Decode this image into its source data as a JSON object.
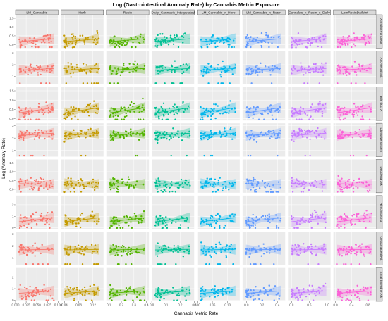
{
  "chart_data": {
    "type": "scatter",
    "title": "Log (Gastrointestinal Anomaly Rate) by Cannabis Metric Exposure",
    "xlabel": "Cannabis Metric Rate",
    "ylabel": "Log (Anomaly Rate)",
    "grid": true,
    "legend": "none",
    "columns": [
      {
        "name": "LM_Cannabis",
        "color": "#F8766D",
        "xlim": [
          0,
          0.1
        ],
        "ticks": [
          "0.000",
          "0.025",
          "0.050",
          "0.075",
          "0.100"
        ],
        "tickvals": [
          0,
          0.025,
          0.05,
          0.075,
          0.1
        ]
      },
      {
        "name": "Herb",
        "color": "#C49A00",
        "xlim": [
          0.03,
          0.15
        ],
        "ticks": [
          "0.04",
          "0.08",
          "0.12"
        ],
        "tickvals": [
          0.04,
          0.08,
          0.12
        ]
      },
      {
        "name": "Resin",
        "color": "#53B400",
        "xlim": [
          0.08,
          0.42
        ],
        "ticks": [
          "0.1",
          "0.2",
          "0.3",
          "0.4"
        ],
        "tickvals": [
          0.1,
          0.2,
          0.3,
          0.4
        ]
      },
      {
        "name": "Daily_Cannabis_Interpolated",
        "color": "#00C094",
        "xlim": [
          0,
          0.3
        ],
        "ticks": [
          "0.0",
          "0.1",
          "0.2",
          "0.3"
        ],
        "tickvals": [
          0,
          0.1,
          0.2,
          0.3
        ]
      },
      {
        "name": "LM_Cannabis_x_Herb",
        "color": "#00B6EB",
        "xlim": [
          0,
          0.14
        ],
        "ticks": [
          "0.00",
          "0.05",
          "0.10"
        ],
        "tickvals": [
          0,
          0.05,
          0.1
        ]
      },
      {
        "name": "LM_Cannabis_x_Resin",
        "color": "#639BFF",
        "xlim": [
          -0.05,
          0.5
        ],
        "ticks": [
          "0.0",
          "0.2",
          "0.4"
        ],
        "tickvals": [
          0,
          0.2,
          0.4
        ]
      },
      {
        "name": "Cannabis_x_Resin_x_Daily",
        "color": "#C77CFF",
        "xlim": [
          -0.1,
          1.1
        ],
        "ticks": [
          "0.0",
          "0.5",
          "1.0"
        ],
        "tickvals": [
          0,
          0.5,
          1
        ]
      },
      {
        "name": "LpmResinDailyInt",
        "color": "#FB61D7",
        "xlim": [
          -0.05,
          1.0
        ],
        "ticks": [
          "0.0",
          "0.4",
          "0.8"
        ],
        "tickvals": [
          0,
          0.4,
          0.8
        ]
      }
    ],
    "rows": [
      {
        "name": "Annular Pancreas",
        "ylim": [
          -0.2,
          1.7
        ],
        "yticks": [
          "0.0",
          "0.5",
          "1.0",
          "1.5"
        ],
        "ytickvals": [
          0,
          0.5,
          1,
          1.5
        ],
        "slope": 0.25,
        "ymean": 0.25,
        "spread": 0.35
      },
      {
        "name": "Ano-rectal Stk",
        "ylim": [
          0.3,
          3.2
        ],
        "yticks": [
          "1",
          "2",
          "3"
        ],
        "ytickvals": [
          1,
          2,
          3
        ],
        "slope": 0.15,
        "ymean": 1.6,
        "spread": 0.5
      },
      {
        "name": "Bile duct A",
        "ylim": [
          -0.1,
          1.7
        ],
        "yticks": [
          "0.0",
          "0.5",
          "1.0",
          "1.5"
        ],
        "ytickvals": [
          0,
          0.5,
          1,
          1.5
        ],
        "slope": 0.45,
        "ymean": 0.45,
        "spread": 0.35
      },
      {
        "name": "Digestive system",
        "ylim": [
          0.5,
          3.2
        ],
        "yticks": [
          "1",
          "2",
          "3"
        ],
        "ytickvals": [
          1,
          2,
          3
        ],
        "slope": 0.2,
        "ymean": 2.3,
        "spread": 0.4
      },
      {
        "name": "Duodenal Atk",
        "ylim": [
          -0.2,
          1.7
        ],
        "yticks": [
          "0.0",
          "0.5",
          "1.0",
          "1.5"
        ],
        "ytickvals": [
          0,
          0.5,
          1,
          1.5
        ],
        "slope": -0.05,
        "ymean": 0.3,
        "spread": 0.35
      },
      {
        "name": "Hirschsprung",
        "ylim": [
          -0.1,
          2.8
        ],
        "yticks": [
          "0",
          "1",
          "2"
        ],
        "ytickvals": [
          0,
          1,
          2
        ],
        "slope": 0.35,
        "ymean": 0.7,
        "spread": 0.55
      },
      {
        "name": "Oesophageal Atk",
        "ylim": [
          0.4,
          3.2
        ],
        "yticks": [
          "1",
          "2",
          "3"
        ],
        "ytickvals": [
          1,
          2,
          3
        ],
        "slope": 0.05,
        "ymean": 1.7,
        "spread": 0.45
      },
      {
        "name": "Small intestine Atk",
        "ylim": [
          -0.1,
          2.8
        ],
        "yticks": [
          "0",
          "1",
          "2"
        ],
        "ytickvals": [
          0,
          1,
          2
        ],
        "slope": 0.2,
        "ymean": 0.7,
        "spread": 0.5
      }
    ],
    "points_per_panel": 50
  }
}
